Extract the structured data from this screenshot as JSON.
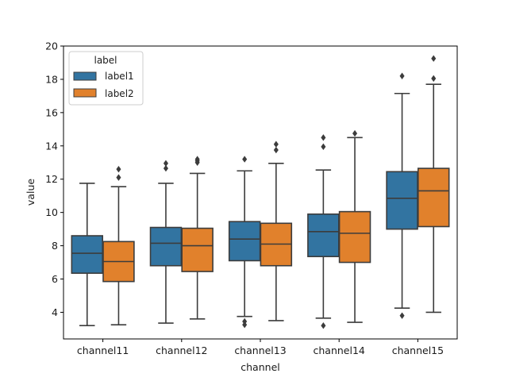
{
  "chart_data": {
    "type": "box",
    "title": "",
    "xlabel": "channel",
    "ylabel": "value",
    "ylim": [
      2.4,
      20
    ],
    "yticks": [
      4,
      6,
      8,
      10,
      12,
      14,
      16,
      18,
      20
    ],
    "yticks_labels": [
      "4",
      "6",
      "8",
      "10",
      "12",
      "14",
      "16",
      "18",
      "20"
    ],
    "grid": false,
    "legend": {
      "title": "label",
      "placement": "top-left"
    },
    "categories": [
      "channel11",
      "channel12",
      "channel13",
      "channel14",
      "channel15"
    ],
    "series": [
      {
        "name": "label1",
        "color": "#3274a1",
        "boxes": [
          {
            "whisker_low": 3.2,
            "q1": 6.35,
            "median": 7.55,
            "q3": 8.6,
            "whisker_high": 11.75,
            "outliers": []
          },
          {
            "whisker_low": 3.35,
            "q1": 6.8,
            "median": 8.15,
            "q3": 9.1,
            "whisker_high": 11.75,
            "outliers": [
              12.65,
              12.95
            ]
          },
          {
            "whisker_low": 3.75,
            "q1": 7.1,
            "median": 8.4,
            "q3": 9.45,
            "whisker_high": 12.5,
            "outliers": [
              3.25,
              3.45,
              13.2
            ]
          },
          {
            "whisker_low": 3.65,
            "q1": 7.35,
            "median": 8.85,
            "q3": 9.9,
            "whisker_high": 12.55,
            "outliers": [
              3.2,
              13.95,
              14.5
            ]
          },
          {
            "whisker_low": 4.25,
            "q1": 9.0,
            "median": 10.85,
            "q3": 12.45,
            "whisker_high": 17.15,
            "outliers": [
              3.8,
              18.2
            ]
          }
        ]
      },
      {
        "name": "label2",
        "color": "#e1812c",
        "boxes": [
          {
            "whisker_low": 3.25,
            "q1": 5.85,
            "median": 7.05,
            "q3": 8.25,
            "whisker_high": 11.55,
            "outliers": [
              12.1,
              12.6
            ]
          },
          {
            "whisker_low": 3.6,
            "q1": 6.45,
            "median": 8.0,
            "q3": 9.05,
            "whisker_high": 12.35,
            "outliers": [
              13.0,
              13.1,
              13.2
            ]
          },
          {
            "whisker_low": 3.5,
            "q1": 6.8,
            "median": 8.1,
            "q3": 9.35,
            "whisker_high": 12.95,
            "outliers": [
              13.75,
              14.1
            ]
          },
          {
            "whisker_low": 3.4,
            "q1": 7.0,
            "median": 8.75,
            "q3": 10.05,
            "whisker_high": 14.5,
            "outliers": [
              14.75
            ]
          },
          {
            "whisker_low": 4.0,
            "q1": 9.15,
            "median": 11.3,
            "q3": 12.65,
            "whisker_high": 17.7,
            "outliers": [
              18.05,
              19.25
            ]
          }
        ]
      }
    ]
  }
}
